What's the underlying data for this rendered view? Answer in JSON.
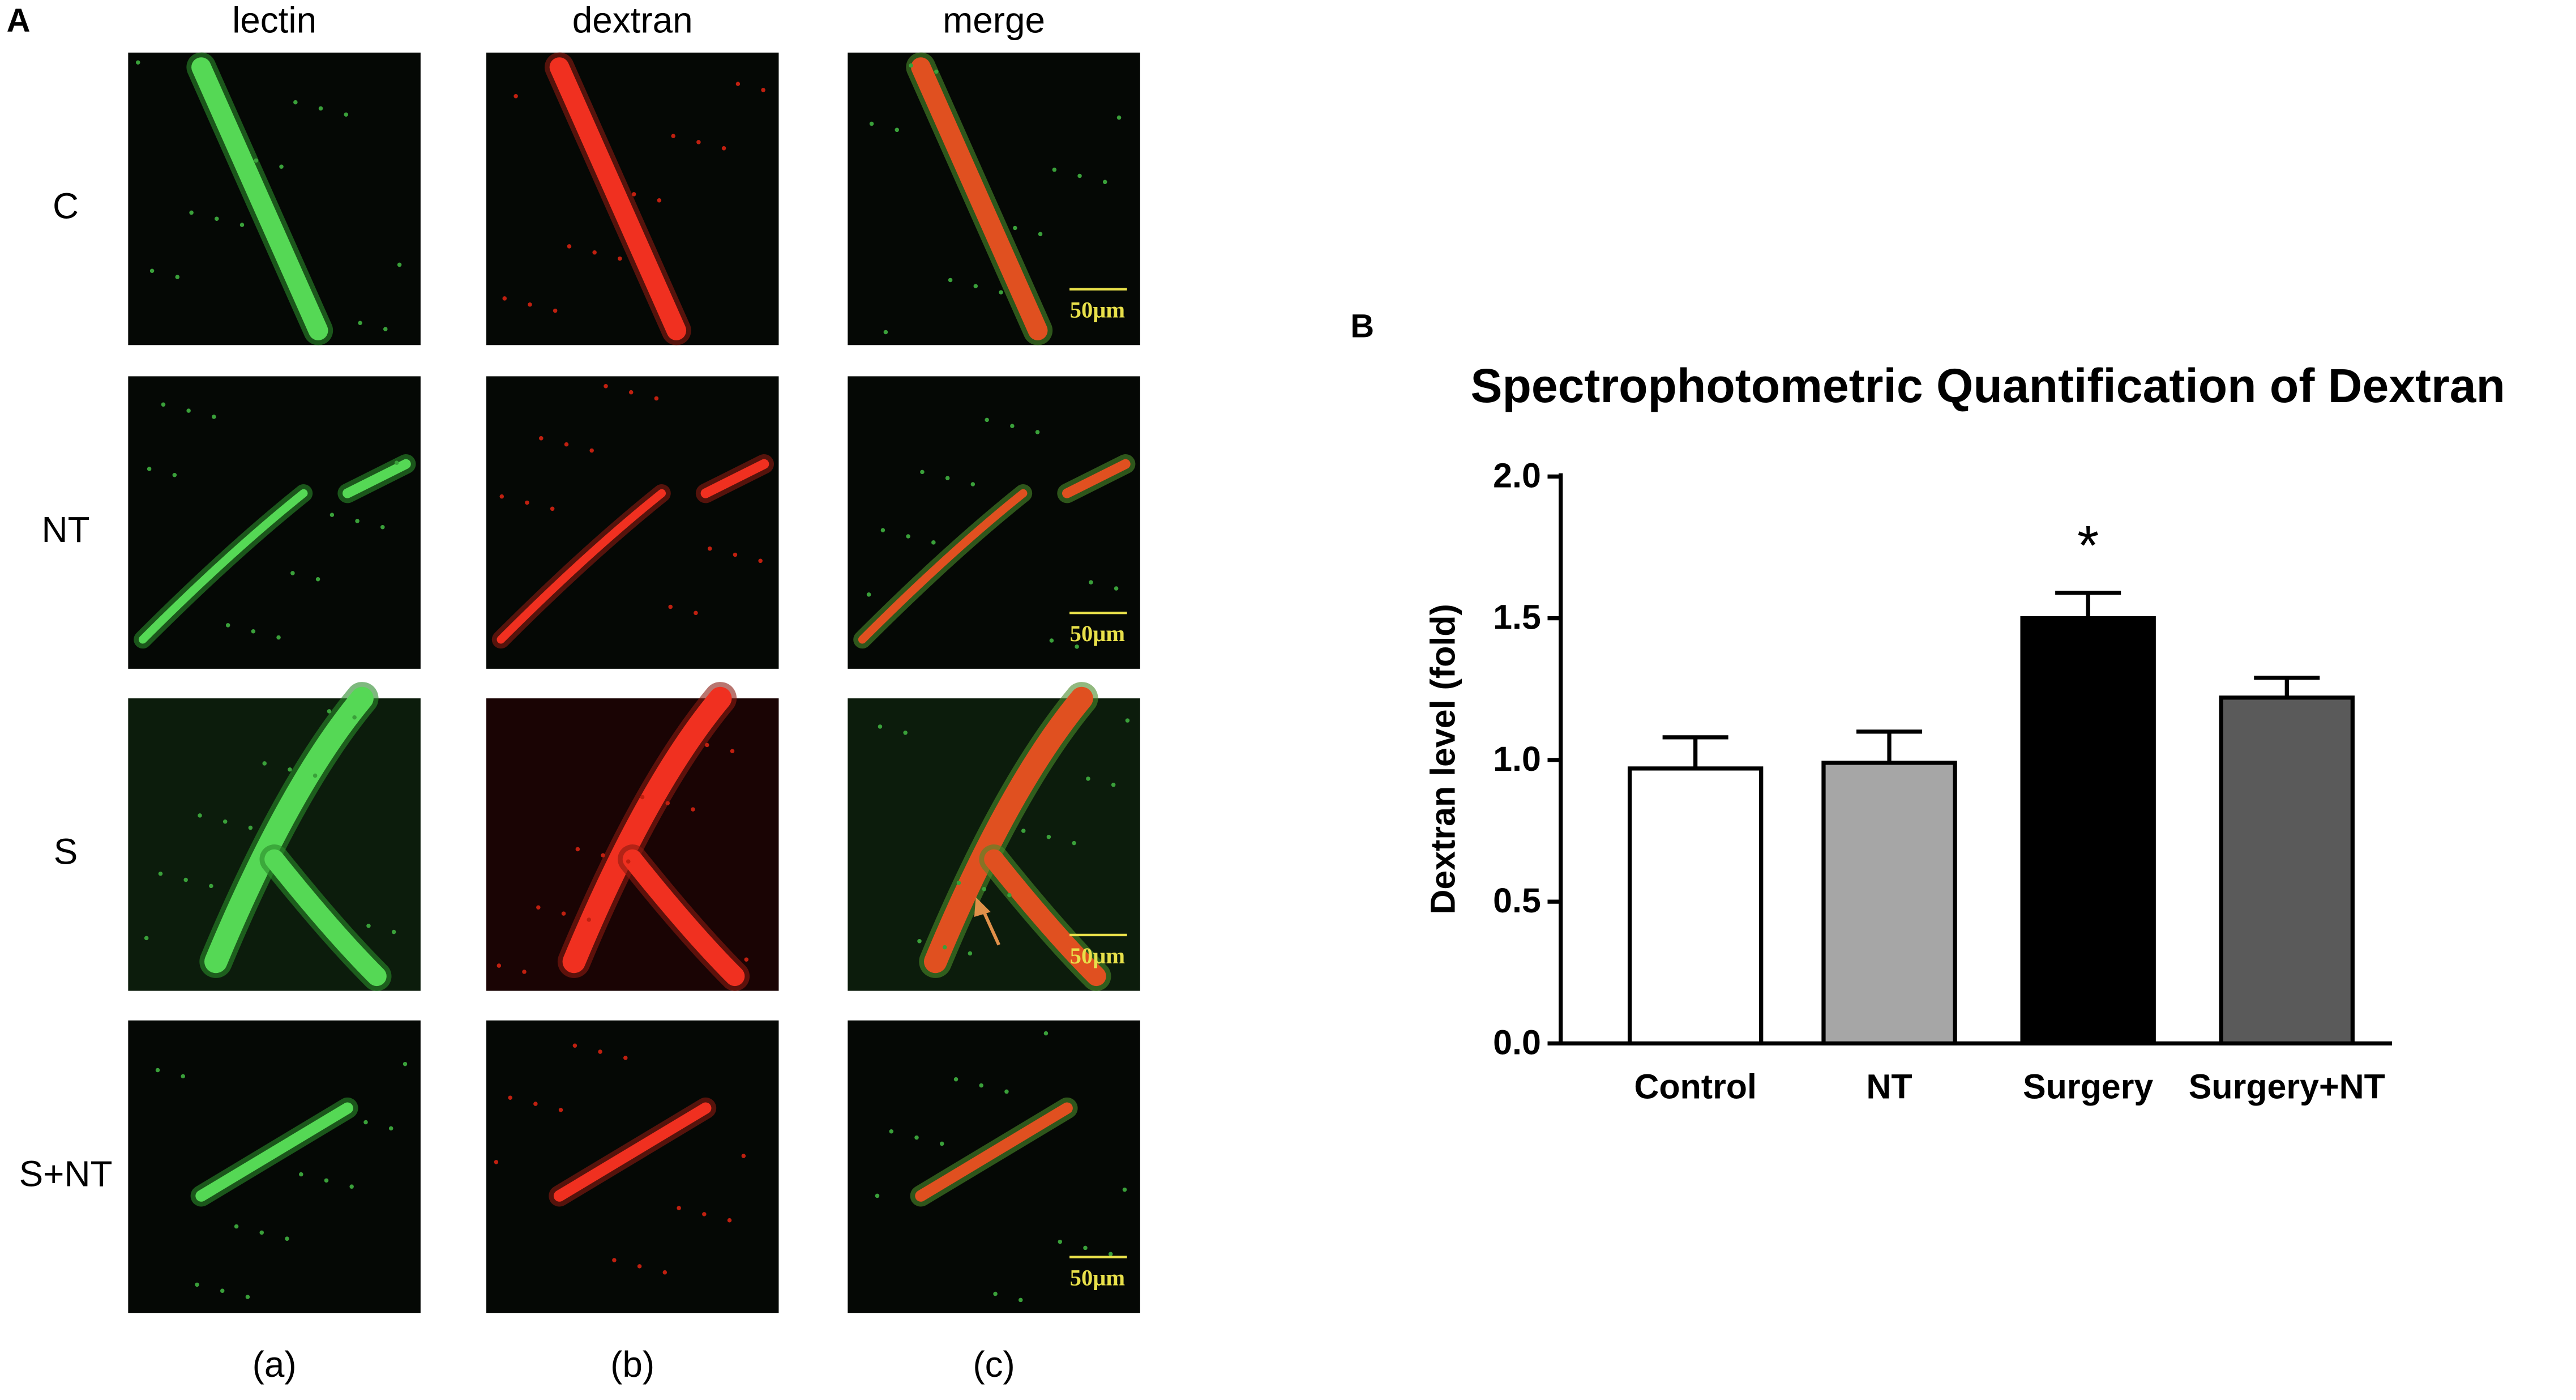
{
  "panel_a": {
    "label": "A",
    "columns": [
      "lectin",
      "dextran",
      "merge"
    ],
    "rows": [
      "C",
      "NT",
      "S",
      "S+NT"
    ],
    "footers": [
      "(a)",
      "(b)",
      "(c)"
    ],
    "scale_bar": "50μm"
  },
  "chart_data": {
    "type": "bar",
    "panel_label": "B",
    "title": "Spectrophotometric Quantification of Dextran",
    "y_label": "Dextran level (fold)",
    "categories": [
      "Control",
      "NT",
      "Surgery",
      "Surgery+NT"
    ],
    "values": [
      0.97,
      0.99,
      1.5,
      1.22
    ],
    "errors": [
      0.11,
      0.11,
      0.09,
      0.07
    ],
    "colors": [
      "#ffffff",
      "#a6a6a6",
      "#000000",
      "#5a5a5a"
    ],
    "annotations": [
      null,
      null,
      "*",
      null
    ],
    "ylim": [
      0,
      2
    ],
    "yticks": [
      {
        "value": 0,
        "label": "0.0"
      },
      0.5,
      {
        "value": 1,
        "label": "1.0"
      },
      1.5,
      {
        "value": 2,
        "label": "2.0"
      }
    ]
  }
}
